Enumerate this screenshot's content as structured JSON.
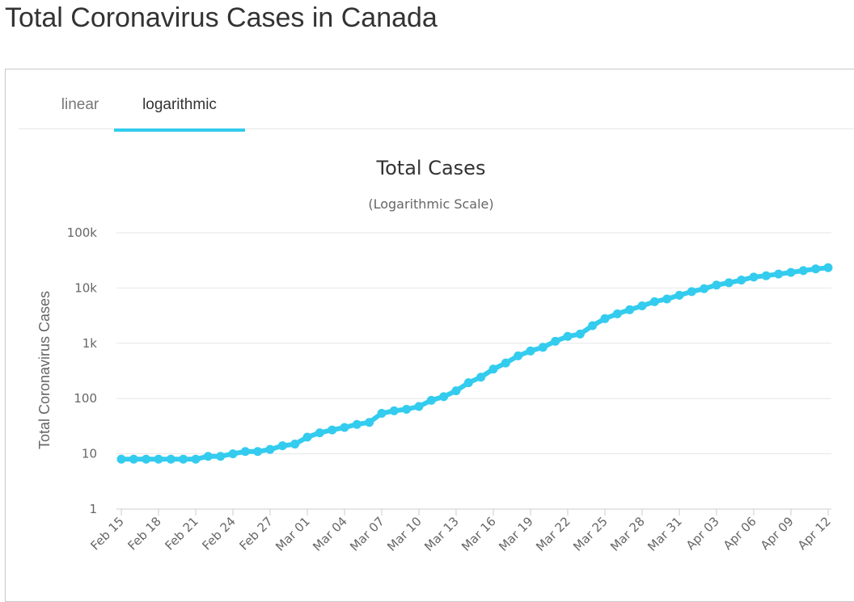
{
  "page": {
    "title": "Total Coronavirus Cases in Canada"
  },
  "tabs": [
    {
      "label": "linear",
      "active": false
    },
    {
      "label": "logarithmic",
      "active": true
    }
  ],
  "colors": {
    "series": "#33ccee",
    "grid": "#e6e6e6",
    "accent": "#33ccee"
  },
  "chart_data": {
    "type": "line",
    "title": "Total Cases",
    "subtitle": "(Logarithmic Scale)",
    "ylabel": "Total Coronavirus Cases",
    "xlabel": "",
    "y_scale": "log",
    "ylim": [
      1,
      100000
    ],
    "y_ticks": [
      {
        "value": 1,
        "label": "1"
      },
      {
        "value": 10,
        "label": "10"
      },
      {
        "value": 100,
        "label": "100"
      },
      {
        "value": 1000,
        "label": "1k"
      },
      {
        "value": 10000,
        "label": "10k"
      },
      {
        "value": 100000,
        "label": "100k"
      }
    ],
    "grid": true,
    "legend": "none",
    "x_tick_labels": [
      "Feb 15",
      "Feb 18",
      "Feb 21",
      "Feb 24",
      "Feb 27",
      "Mar 01",
      "Mar 04",
      "Mar 07",
      "Mar 10",
      "Mar 13",
      "Mar 16",
      "Mar 19",
      "Mar 22",
      "Mar 25",
      "Mar 28",
      "Mar 31",
      "Apr 03",
      "Apr 06",
      "Apr 09",
      "Apr 12"
    ],
    "x": [
      "Feb 15",
      "Feb 16",
      "Feb 17",
      "Feb 18",
      "Feb 19",
      "Feb 20",
      "Feb 21",
      "Feb 22",
      "Feb 23",
      "Feb 24",
      "Feb 25",
      "Feb 26",
      "Feb 27",
      "Feb 28",
      "Feb 29",
      "Mar 01",
      "Mar 02",
      "Mar 03",
      "Mar 04",
      "Mar 05",
      "Mar 06",
      "Mar 07",
      "Mar 08",
      "Mar 09",
      "Mar 10",
      "Mar 11",
      "Mar 12",
      "Mar 13",
      "Mar 14",
      "Mar 15",
      "Mar 16",
      "Mar 17",
      "Mar 18",
      "Mar 19",
      "Mar 20",
      "Mar 21",
      "Mar 22",
      "Mar 23",
      "Mar 24",
      "Mar 25",
      "Mar 26",
      "Mar 27",
      "Mar 28",
      "Mar 29",
      "Mar 30",
      "Mar 31",
      "Apr 01",
      "Apr 02",
      "Apr 03",
      "Apr 04",
      "Apr 05",
      "Apr 06",
      "Apr 07",
      "Apr 08",
      "Apr 09",
      "Apr 10",
      "Apr 11",
      "Apr 12"
    ],
    "series": [
      {
        "values": [
          8,
          8,
          8,
          8,
          8,
          8,
          8,
          9,
          9,
          10,
          11,
          11,
          12,
          14,
          15,
          20,
          24,
          27,
          30,
          34,
          37,
          54,
          60,
          64,
          72,
          93,
          108,
          138,
          193,
          244,
          341,
          439,
          592,
          726,
          845,
          1087,
          1331,
          1469,
          2081,
          2792,
          3409,
          4042,
          4757,
          5655,
          6320,
          7398,
          8591,
          9731,
          11284,
          12437,
          13882,
          15756,
          16667,
          17872,
          19141,
          20654,
          22148,
          23316
        ]
      }
    ]
  }
}
